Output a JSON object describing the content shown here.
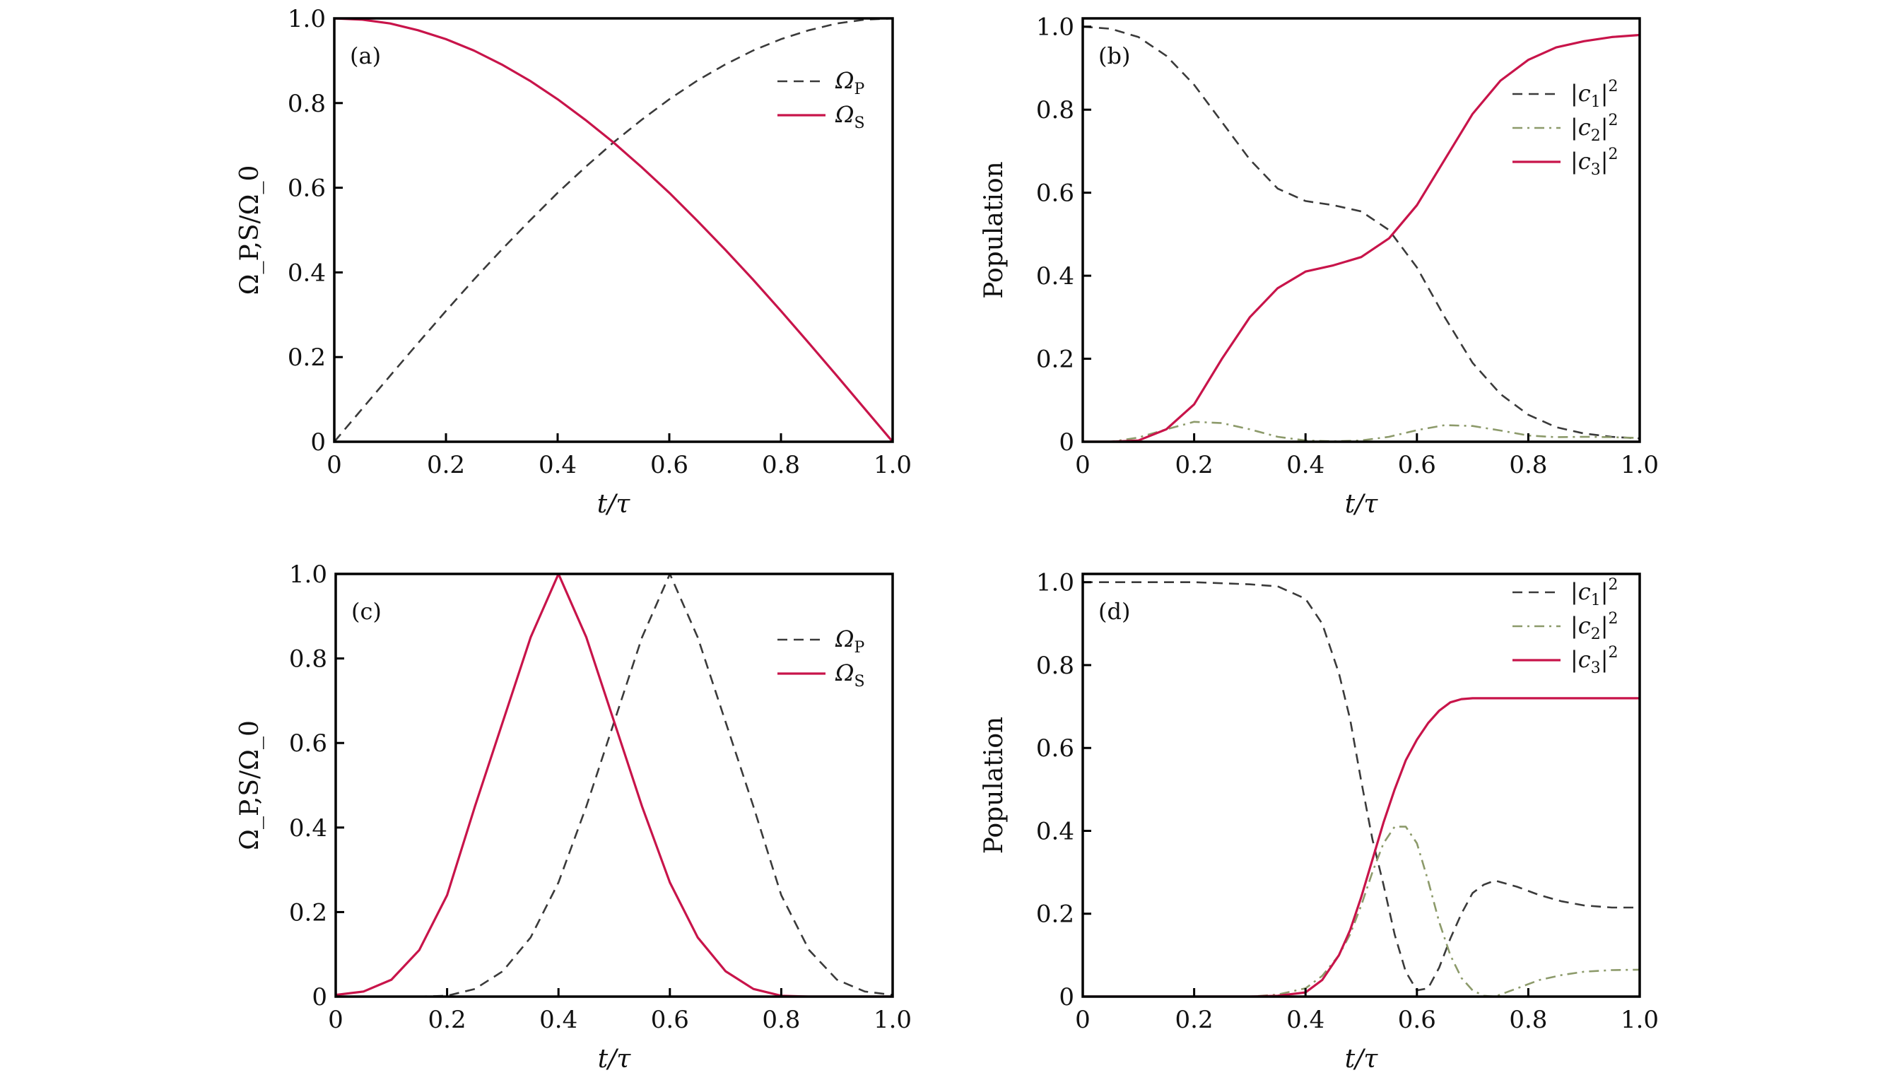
{
  "colors": {
    "pump": "#3a3a3a",
    "stokes": "#c8144a",
    "c1": "#3a3a3a",
    "c2": "#8c9a6a",
    "c3": "#c8144a",
    "axis": "#000000"
  },
  "chart_data": [
    {
      "id": "a",
      "type": "line",
      "panel_label": "(a)",
      "xlabel": "t/τ",
      "ylabel": "Ω_P,S/Ω_0",
      "xlim": [
        0,
        1.0
      ],
      "ylim": [
        0,
        1.0
      ],
      "xticks": [
        "0",
        "0.2",
        "0.4",
        "0.6",
        "0.8",
        "1.0"
      ],
      "yticks": [
        "0",
        "0.2",
        "0.4",
        "0.6",
        "0.8",
        "1.0"
      ],
      "xtick_values": [
        0,
        0.2,
        0.4,
        0.6,
        0.8,
        1.0
      ],
      "ytick_values": [
        0,
        0.2,
        0.4,
        0.6,
        0.8,
        1.0
      ],
      "legend_position": "upper-right",
      "series": [
        {
          "name": "Ω_P",
          "label_main": "Ω",
          "label_sub": "P",
          "style": "dashed",
          "color_key": "pump",
          "x": [
            0,
            0.05,
            0.1,
            0.15,
            0.2,
            0.25,
            0.3,
            0.35,
            0.4,
            0.45,
            0.5,
            0.55,
            0.6,
            0.65,
            0.7,
            0.75,
            0.8,
            0.85,
            0.9,
            0.95,
            1.0
          ],
          "y": [
            0,
            0.078,
            0.156,
            0.233,
            0.309,
            0.383,
            0.454,
            0.522,
            0.588,
            0.649,
            0.707,
            0.76,
            0.809,
            0.853,
            0.891,
            0.924,
            0.951,
            0.972,
            0.988,
            0.997,
            1.0
          ]
        },
        {
          "name": "Ω_S",
          "label_main": "Ω",
          "label_sub": "S",
          "style": "solid",
          "color_key": "stokes",
          "x": [
            0,
            0.05,
            0.1,
            0.15,
            0.2,
            0.25,
            0.3,
            0.35,
            0.4,
            0.45,
            0.5,
            0.55,
            0.6,
            0.65,
            0.7,
            0.75,
            0.8,
            0.85,
            0.9,
            0.95,
            1.0
          ],
          "y": [
            1.0,
            0.997,
            0.988,
            0.972,
            0.951,
            0.924,
            0.891,
            0.853,
            0.809,
            0.76,
            0.707,
            0.649,
            0.588,
            0.522,
            0.454,
            0.383,
            0.309,
            0.233,
            0.156,
            0.078,
            0
          ]
        }
      ]
    },
    {
      "id": "b",
      "type": "line",
      "panel_label": "(b)",
      "xlabel": "t/τ",
      "ylabel": "Population",
      "xlim": [
        0,
        1.0
      ],
      "ylim": [
        0,
        1.02
      ],
      "xticks": [
        "0",
        "0.2",
        "0.4",
        "0.6",
        "0.8",
        "1.0"
      ],
      "yticks": [
        "0",
        "0.2",
        "0.4",
        "0.6",
        "0.8",
        "1.0"
      ],
      "xtick_values": [
        0,
        0.2,
        0.4,
        0.6,
        0.8,
        1.0
      ],
      "ytick_values": [
        0,
        0.2,
        0.4,
        0.6,
        0.8,
        1.0
      ],
      "legend_position": "upper-right",
      "series": [
        {
          "name": "|c_1|^2",
          "label_main": "c",
          "label_sub": "1",
          "style": "dashed",
          "color_key": "c1",
          "x": [
            0,
            0.05,
            0.1,
            0.15,
            0.2,
            0.25,
            0.3,
            0.35,
            0.4,
            0.45,
            0.5,
            0.55,
            0.6,
            0.65,
            0.7,
            0.75,
            0.8,
            0.85,
            0.9,
            0.95,
            1.0
          ],
          "y": [
            1.0,
            0.995,
            0.975,
            0.93,
            0.86,
            0.77,
            0.68,
            0.61,
            0.58,
            0.57,
            0.555,
            0.51,
            0.42,
            0.3,
            0.19,
            0.115,
            0.065,
            0.035,
            0.02,
            0.012,
            0.008
          ]
        },
        {
          "name": "|c_2|^2",
          "label_main": "c",
          "label_sub": "2",
          "style": "dashdot",
          "color_key": "c2",
          "x": [
            0,
            0.05,
            0.1,
            0.15,
            0.2,
            0.25,
            0.3,
            0.35,
            0.4,
            0.45,
            0.5,
            0.55,
            0.6,
            0.65,
            0.7,
            0.75,
            0.8,
            0.85,
            0.9,
            0.95,
            1.0
          ],
          "y": [
            0,
            0.0,
            0.01,
            0.03,
            0.048,
            0.045,
            0.03,
            0.012,
            0.003,
            0.001,
            0.003,
            0.012,
            0.028,
            0.04,
            0.038,
            0.027,
            0.015,
            0.011,
            0.012,
            0.011,
            0.009
          ]
        },
        {
          "name": "|c_3|^2",
          "label_main": "c",
          "label_sub": "3",
          "style": "solid",
          "color_key": "c3",
          "x": [
            0,
            0.05,
            0.1,
            0.15,
            0.2,
            0.25,
            0.3,
            0.35,
            0.4,
            0.45,
            0.5,
            0.55,
            0.6,
            0.65,
            0.7,
            0.75,
            0.8,
            0.85,
            0.9,
            0.95,
            1.0
          ],
          "y": [
            0,
            0.0,
            0.003,
            0.03,
            0.09,
            0.2,
            0.3,
            0.37,
            0.41,
            0.425,
            0.445,
            0.49,
            0.57,
            0.68,
            0.79,
            0.87,
            0.92,
            0.95,
            0.965,
            0.975,
            0.98
          ]
        }
      ]
    },
    {
      "id": "c",
      "type": "line",
      "panel_label": "(c)",
      "xlabel": "t/τ",
      "ylabel": "Ω_P,S/Ω_0",
      "xlim": [
        0,
        1.0
      ],
      "ylim": [
        0,
        1.0
      ],
      "xticks": [
        "0",
        "0.2",
        "0.4",
        "0.6",
        "0.8",
        "1.0"
      ],
      "yticks": [
        "0",
        "0.2",
        "0.4",
        "0.6",
        "0.8",
        "1.0"
      ],
      "xtick_values": [
        0,
        0.2,
        0.4,
        0.6,
        0.8,
        1.0
      ],
      "ytick_values": [
        0,
        0.2,
        0.4,
        0.6,
        0.8,
        1.0
      ],
      "legend_position": "upper-right",
      "series": [
        {
          "name": "Ω_P",
          "label_main": "Ω",
          "label_sub": "P",
          "style": "dashed",
          "color_key": "pump",
          "x": [
            0,
            0.05,
            0.1,
            0.15,
            0.2,
            0.25,
            0.3,
            0.35,
            0.4,
            0.45,
            0.5,
            0.55,
            0.6,
            0.65,
            0.7,
            0.75,
            0.8,
            0.85,
            0.9,
            0.95,
            1.0
          ],
          "y": [
            0,
            0,
            0,
            0.0,
            0.002,
            0.018,
            0.06,
            0.14,
            0.27,
            0.45,
            0.65,
            0.85,
            1.0,
            0.85,
            0.65,
            0.45,
            0.24,
            0.11,
            0.04,
            0.012,
            0.004
          ]
        },
        {
          "name": "Ω_S",
          "label_main": "Ω",
          "label_sub": "S",
          "style": "solid",
          "color_key": "stokes",
          "x": [
            0,
            0.05,
            0.1,
            0.15,
            0.2,
            0.25,
            0.3,
            0.35,
            0.4,
            0.45,
            0.5,
            0.55,
            0.6,
            0.65,
            0.7,
            0.75,
            0.8,
            0.85,
            0.9,
            0.95,
            1.0
          ],
          "y": [
            0.004,
            0.012,
            0.04,
            0.11,
            0.24,
            0.45,
            0.65,
            0.85,
            1.0,
            0.85,
            0.65,
            0.45,
            0.27,
            0.14,
            0.06,
            0.018,
            0.002,
            0.0,
            0,
            0,
            0
          ]
        }
      ]
    },
    {
      "id": "d",
      "type": "line",
      "panel_label": "(d)",
      "xlabel": "t/τ",
      "ylabel": "Population",
      "xlim": [
        0,
        1.0
      ],
      "ylim": [
        0,
        1.02
      ],
      "xticks": [
        "0",
        "0.2",
        "0.4",
        "0.6",
        "0.8",
        "1.0"
      ],
      "yticks": [
        "0",
        "0.2",
        "0.4",
        "0.6",
        "0.8",
        "1.0"
      ],
      "xtick_values": [
        0,
        0.2,
        0.4,
        0.6,
        0.8,
        1.0
      ],
      "ytick_values": [
        0,
        0.2,
        0.4,
        0.6,
        0.8,
        1.0
      ],
      "legend_position": "upper-right",
      "series": [
        {
          "name": "|c_1|^2",
          "label_main": "c",
          "label_sub": "1",
          "style": "dashed",
          "color_key": "c1",
          "x": [
            0,
            0.1,
            0.2,
            0.3,
            0.35,
            0.4,
            0.43,
            0.46,
            0.48,
            0.5,
            0.52,
            0.54,
            0.56,
            0.58,
            0.6,
            0.62,
            0.64,
            0.66,
            0.68,
            0.7,
            0.72,
            0.74,
            0.78,
            0.82,
            0.86,
            0.9,
            0.95,
            1.0
          ],
          "y": [
            1.0,
            1.0,
            1.0,
            0.995,
            0.99,
            0.96,
            0.9,
            0.78,
            0.67,
            0.52,
            0.38,
            0.27,
            0.15,
            0.06,
            0.015,
            0.02,
            0.07,
            0.14,
            0.2,
            0.25,
            0.27,
            0.28,
            0.265,
            0.245,
            0.23,
            0.22,
            0.215,
            0.215
          ]
        },
        {
          "name": "|c_2|^2",
          "label_main": "c",
          "label_sub": "2",
          "style": "dashdot",
          "color_key": "c2",
          "x": [
            0,
            0.1,
            0.2,
            0.3,
            0.35,
            0.4,
            0.43,
            0.46,
            0.48,
            0.5,
            0.52,
            0.54,
            0.56,
            0.58,
            0.6,
            0.62,
            0.64,
            0.66,
            0.68,
            0.7,
            0.72,
            0.74,
            0.78,
            0.82,
            0.86,
            0.9,
            0.95,
            1.0
          ],
          "y": [
            0,
            0,
            0,
            0.0,
            0.005,
            0.02,
            0.05,
            0.1,
            0.15,
            0.22,
            0.3,
            0.37,
            0.41,
            0.41,
            0.37,
            0.28,
            0.18,
            0.1,
            0.045,
            0.015,
            0.002,
            0.0,
            0.02,
            0.04,
            0.052,
            0.06,
            0.064,
            0.065
          ]
        },
        {
          "name": "|c_3|^2",
          "label_main": "c",
          "label_sub": "3",
          "style": "solid",
          "color_key": "c3",
          "x": [
            0,
            0.1,
            0.2,
            0.3,
            0.35,
            0.4,
            0.43,
            0.46,
            0.48,
            0.5,
            0.52,
            0.54,
            0.56,
            0.58,
            0.6,
            0.62,
            0.64,
            0.66,
            0.68,
            0.7,
            0.72,
            0.74,
            0.78,
            0.82,
            0.86,
            0.9,
            0.95,
            1.0
          ],
          "y": [
            0,
            0,
            0,
            0.0,
            0.002,
            0.01,
            0.04,
            0.1,
            0.16,
            0.24,
            0.33,
            0.42,
            0.5,
            0.57,
            0.62,
            0.66,
            0.69,
            0.71,
            0.718,
            0.72,
            0.72,
            0.72,
            0.72,
            0.72,
            0.72,
            0.72,
            0.72,
            0.72
          ]
        }
      ]
    }
  ]
}
